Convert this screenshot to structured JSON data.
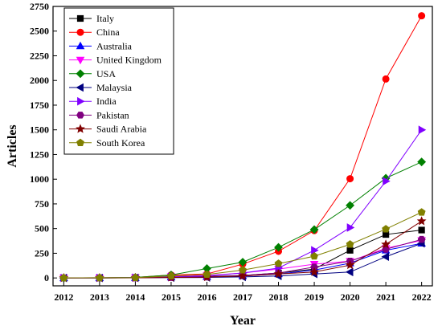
{
  "chart_data": {
    "type": "line",
    "title": "",
    "xlabel": "Year",
    "ylabel": "Articles",
    "x": [
      2012,
      2013,
      2014,
      2015,
      2016,
      2017,
      2018,
      2019,
      2020,
      2021,
      2022
    ],
    "xlim": [
      2011.7,
      2022.3
    ],
    "ylim": [
      -80,
      2750
    ],
    "yticks": [
      0,
      250,
      500,
      750,
      1000,
      1250,
      1500,
      1750,
      2000,
      2250,
      2500,
      2750
    ],
    "grid": false,
    "legend_position": "top-left",
    "series": [
      {
        "name": "Italy",
        "color": "#000000",
        "marker": "square",
        "values": [
          0,
          0,
          2,
          10,
          15,
          25,
          50,
          90,
          280,
          440,
          485
        ]
      },
      {
        "name": "China",
        "color": "#ff0000",
        "marker": "circle",
        "values": [
          0,
          2,
          5,
          30,
          40,
          140,
          270,
          480,
          1005,
          2015,
          2655
        ]
      },
      {
        "name": "Australia",
        "color": "#0000ff",
        "marker": "triangle-up",
        "values": [
          0,
          0,
          2,
          8,
          12,
          20,
          40,
          80,
          150,
          280,
          350
        ]
      },
      {
        "name": "United Kingdom",
        "color": "#ff00ff",
        "marker": "triangle-down",
        "values": [
          0,
          1,
          3,
          15,
          25,
          50,
          90,
          140,
          170,
          300,
          380
        ]
      },
      {
        "name": "USA",
        "color": "#008000",
        "marker": "diamond",
        "values": [
          0,
          2,
          5,
          30,
          95,
          160,
          310,
          490,
          735,
          1010,
          1175
        ]
      },
      {
        "name": "Malaysia",
        "color": "#000080",
        "marker": "triangle-left",
        "values": [
          0,
          0,
          1,
          3,
          5,
          10,
          20,
          40,
          60,
          215,
          350
        ]
      },
      {
        "name": "India",
        "color": "#8000ff",
        "marker": "triangle-right",
        "values": [
          0,
          1,
          3,
          10,
          20,
          50,
          100,
          280,
          510,
          980,
          1500
        ]
      },
      {
        "name": "Pakistan",
        "color": "#800080",
        "marker": "hexagon",
        "values": [
          0,
          0,
          1,
          5,
          10,
          25,
          50,
          110,
          170,
          290,
          390
        ]
      },
      {
        "name": "Saudi Arabia",
        "color": "#800000",
        "marker": "star",
        "values": [
          0,
          0,
          1,
          5,
          8,
          20,
          40,
          60,
          130,
          340,
          575
        ]
      },
      {
        "name": "South Korea",
        "color": "#808000",
        "marker": "pentagon",
        "values": [
          0,
          1,
          3,
          20,
          35,
          80,
          145,
          220,
          340,
          495,
          665
        ]
      }
    ]
  }
}
